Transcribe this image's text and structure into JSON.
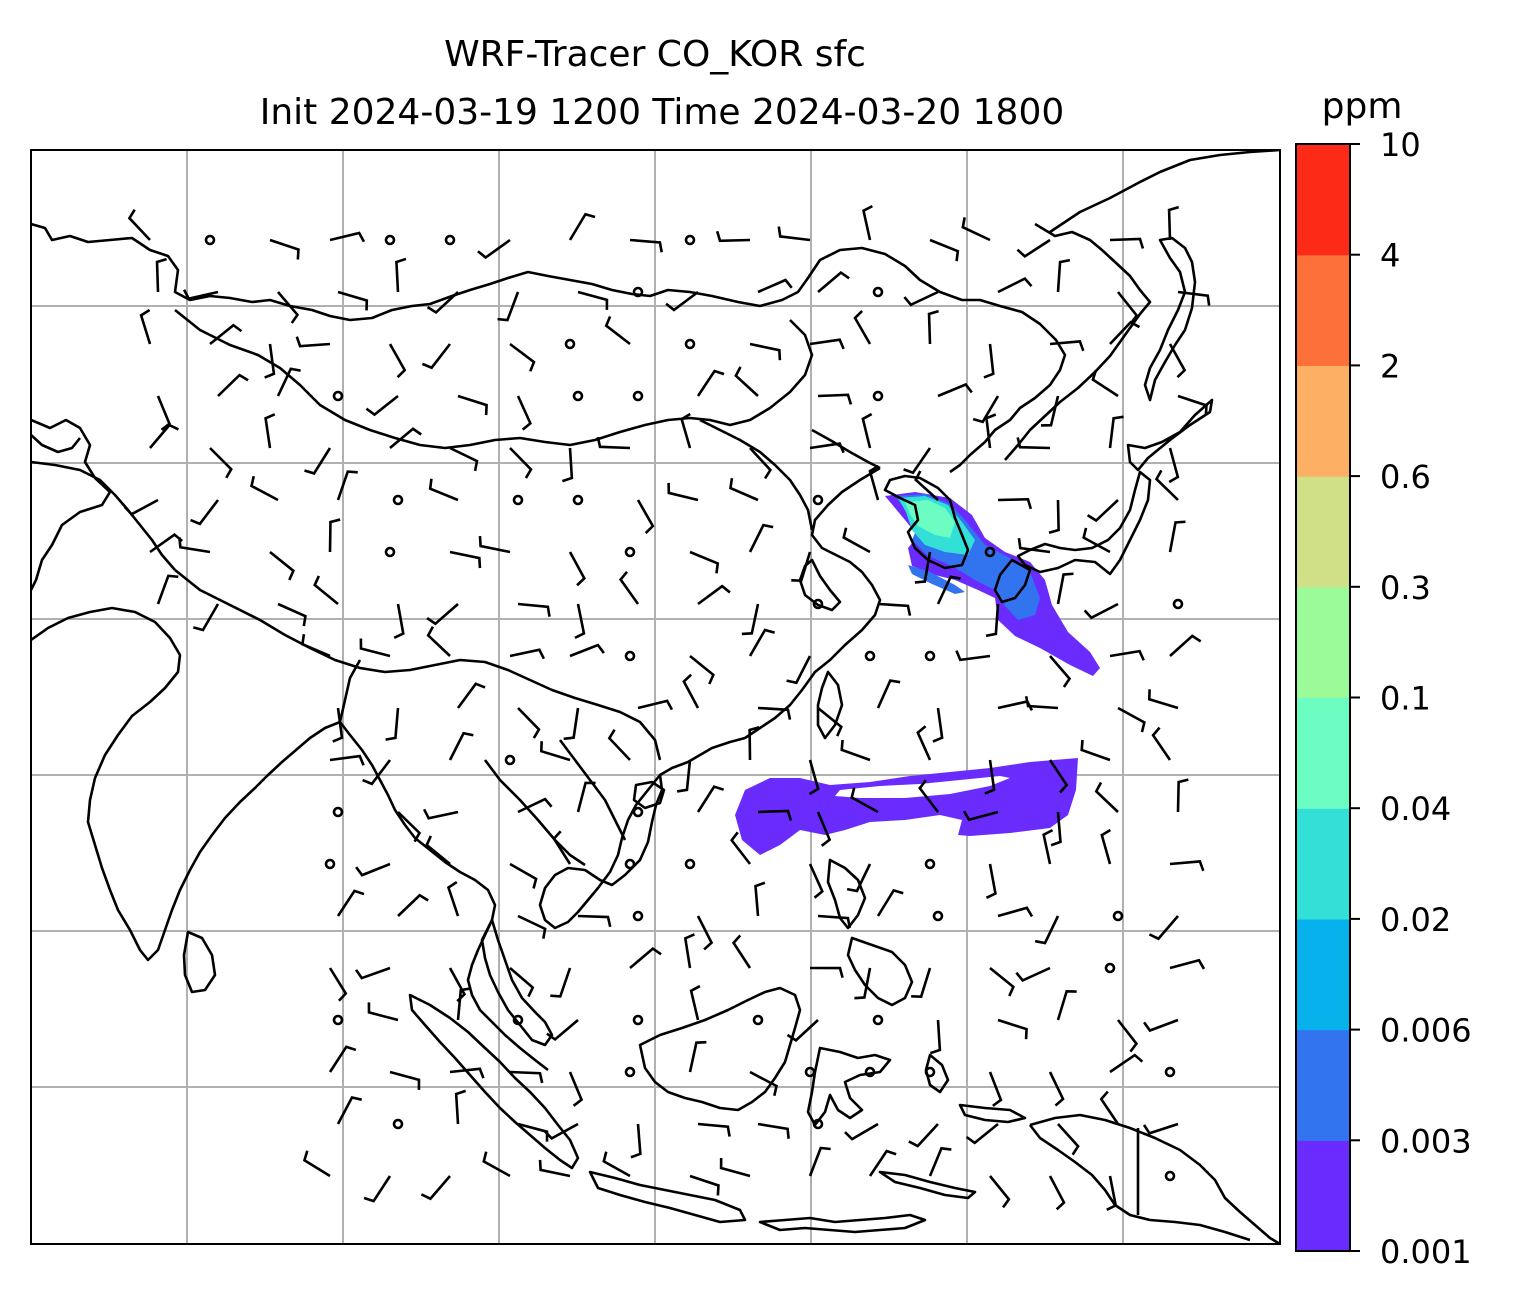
{
  "title": {
    "line1": "WRF-Tracer CO_KOR sfc",
    "line2": "Init 2024-03-19 1200 Time 2024-03-20 1800"
  },
  "colorbar": {
    "unit": "ppm",
    "ticks": [
      "0.001",
      "0.003",
      "0.006",
      "0.02",
      "0.04",
      "0.1",
      "0.3",
      "0.6",
      "2",
      "4",
      "10"
    ],
    "colors": [
      "#6a2cfd",
      "#3273f0",
      "#06b1ec",
      "#32e0d7",
      "#6bfdc2",
      "#9cfb99",
      "#d0e086",
      "#fdb064",
      "#fd7039",
      "#fd2a17"
    ]
  },
  "map": {
    "coastline_color": "#000000",
    "grid_color": "#b0b0b0",
    "barb_color": "#000000",
    "plume_colors": {
      "low": "#6a2cfd",
      "mid": "#3273f0",
      "cyan": "#32e0d7",
      "mint": "#6bfdc2"
    }
  }
}
